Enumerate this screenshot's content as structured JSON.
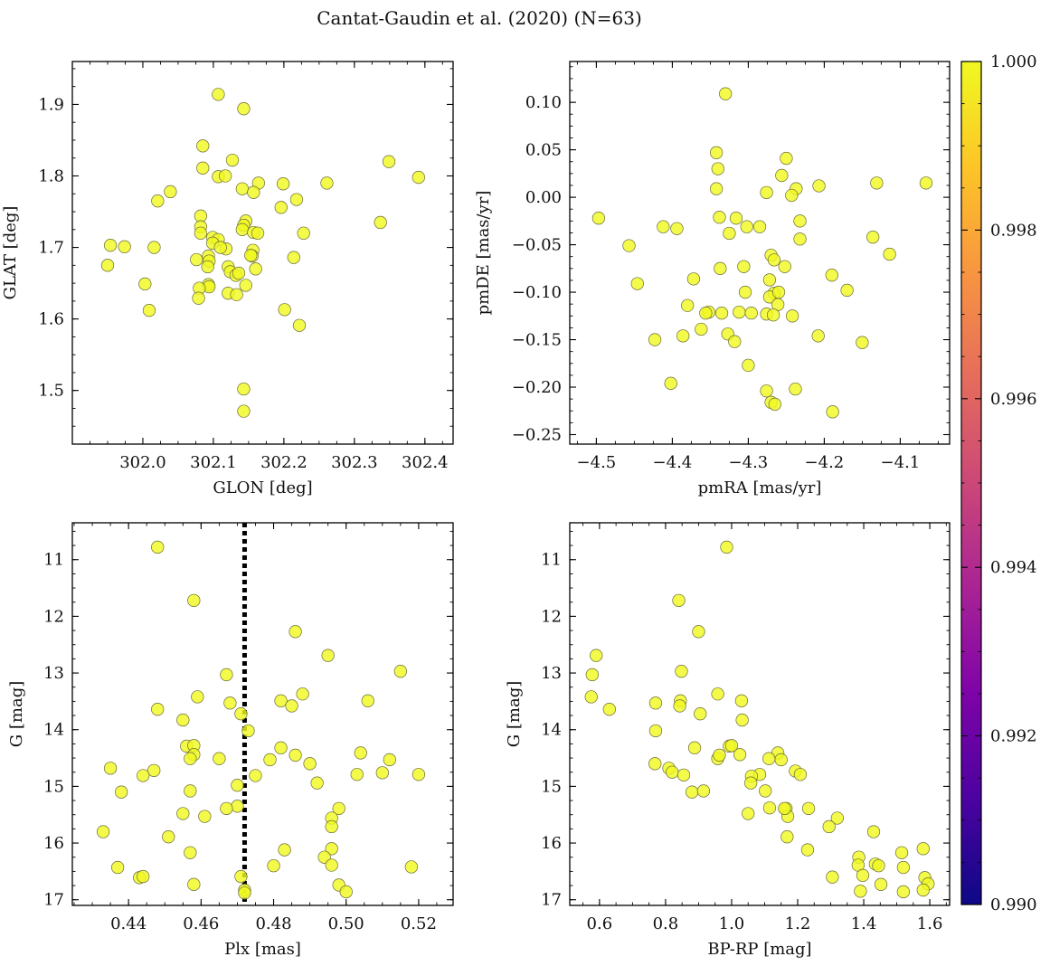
{
  "figure": {
    "title": "Cantat-Gaudin et al. (2020) (N=63)"
  },
  "colorbar": {
    "colormap": "plasma",
    "range": [
      0.99,
      1.0
    ],
    "ticks": [
      0.99,
      0.992,
      0.994,
      0.996,
      0.998,
      1.0
    ],
    "tick_labels": [
      "0.990",
      "0.992",
      "0.994",
      "0.996",
      "0.998",
      "1.000"
    ]
  },
  "chart_data": [
    {
      "type": "scatter",
      "panel": "top-left",
      "xlabel": "GLON [deg]",
      "ylabel": "GLAT [deg]",
      "xlim": [
        301.9,
        302.44
      ],
      "ylim": [
        1.425,
        1.96
      ],
      "xticks": [
        302.0,
        302.1,
        302.2,
        302.3,
        302.4
      ],
      "xtick_labels": [
        "302.0",
        "302.1",
        "302.2",
        "302.3",
        "302.4"
      ],
      "yticks": [
        1.5,
        1.6,
        1.7,
        1.8,
        1.9
      ],
      "ytick_labels": [
        "1.5",
        "1.6",
        "1.7",
        "1.8",
        "1.9"
      ],
      "point_color": "#f0f921",
      "membership_probability": 1.0,
      "points": [
        [
          302.107,
          1.914
        ],
        [
          302.143,
          1.894
        ],
        [
          302.349,
          1.82
        ],
        [
          302.391,
          1.798
        ],
        [
          302.085,
          1.842
        ],
        [
          302.127,
          1.822
        ],
        [
          302.085,
          1.811
        ],
        [
          302.107,
          1.799
        ],
        [
          302.117,
          1.8
        ],
        [
          302.039,
          1.778
        ],
        [
          302.021,
          1.765
        ],
        [
          302.141,
          1.782
        ],
        [
          302.164,
          1.79
        ],
        [
          302.157,
          1.777
        ],
        [
          302.199,
          1.789
        ],
        [
          302.261,
          1.79
        ],
        [
          302.218,
          1.767
        ],
        [
          302.196,
          1.756
        ],
        [
          302.082,
          1.744
        ],
        [
          302.146,
          1.737
        ],
        [
          302.143,
          1.731
        ],
        [
          302.082,
          1.729
        ],
        [
          302.141,
          1.725
        ],
        [
          302.099,
          1.714
        ],
        [
          302.157,
          1.721
        ],
        [
          302.163,
          1.72
        ],
        [
          302.082,
          1.72
        ],
        [
          302.107,
          1.711
        ],
        [
          302.099,
          1.706
        ],
        [
          302.228,
          1.72
        ],
        [
          302.337,
          1.735
        ],
        [
          301.954,
          1.703
        ],
        [
          301.974,
          1.701
        ],
        [
          302.016,
          1.7
        ],
        [
          302.118,
          1.698
        ],
        [
          302.156,
          1.696
        ],
        [
          302.093,
          1.688
        ],
        [
          302.155,
          1.688
        ],
        [
          301.95,
          1.675
        ],
        [
          302.076,
          1.683
        ],
        [
          302.094,
          1.681
        ],
        [
          302.214,
          1.686
        ],
        [
          302.092,
          1.673
        ],
        [
          302.121,
          1.673
        ],
        [
          302.124,
          1.666
        ],
        [
          302.16,
          1.67
        ],
        [
          302.132,
          1.661
        ],
        [
          302.136,
          1.664
        ],
        [
          302.093,
          1.648
        ],
        [
          302.094,
          1.645
        ],
        [
          302.146,
          1.647
        ],
        [
          302.08,
          1.643
        ],
        [
          302.003,
          1.649
        ],
        [
          302.121,
          1.636
        ],
        [
          302.133,
          1.634
        ],
        [
          302.079,
          1.629
        ],
        [
          302.009,
          1.612
        ],
        [
          302.201,
          1.613
        ],
        [
          302.222,
          1.591
        ],
        [
          302.143,
          1.502
        ],
        [
          302.143,
          1.471
        ],
        [
          302.11,
          1.7
        ],
        [
          302.153,
          1.689
        ]
      ]
    },
    {
      "type": "scatter",
      "panel": "top-right",
      "xlabel": "pmRA [mas/yr]",
      "ylabel": "pmDE [mas/yr]",
      "xlim": [
        -4.535,
        -4.035
      ],
      "ylim": [
        -0.26,
        0.143
      ],
      "xticks": [
        -4.5,
        -4.4,
        -4.3,
        -4.2,
        -4.1
      ],
      "xtick_labels": [
        "−4.5",
        "−4.4",
        "−4.3",
        "−4.2",
        "−4.1"
      ],
      "yticks": [
        -0.25,
        -0.2,
        -0.15,
        -0.1,
        -0.05,
        0.0,
        0.05,
        0.1
      ],
      "ytick_labels": [
        "−0.25",
        "−0.20",
        "−0.15",
        "−0.10",
        "−0.05",
        "0.00",
        "0.05",
        "0.10"
      ],
      "point_color": "#f0f921",
      "membership_probability": 1.0,
      "points": [
        [
          -4.33,
          0.109
        ],
        [
          -4.342,
          0.047
        ],
        [
          -4.34,
          0.03
        ],
        [
          -4.25,
          0.041
        ],
        [
          -4.342,
          0.009
        ],
        [
          -4.256,
          0.023
        ],
        [
          -4.207,
          0.012
        ],
        [
          -4.131,
          0.015
        ],
        [
          -4.066,
          0.015
        ],
        [
          -4.276,
          0.005
        ],
        [
          -4.237,
          0.009
        ],
        [
          -4.243,
          0.002
        ],
        [
          -4.497,
          -0.022
        ],
        [
          -4.338,
          -0.021
        ],
        [
          -4.316,
          -0.022
        ],
        [
          -4.232,
          -0.025
        ],
        [
          -4.412,
          -0.031
        ],
        [
          -4.394,
          -0.033
        ],
        [
          -4.302,
          -0.031
        ],
        [
          -4.285,
          -0.031
        ],
        [
          -4.325,
          -0.038
        ],
        [
          -4.232,
          -0.044
        ],
        [
          -4.136,
          -0.042
        ],
        [
          -4.457,
          -0.051
        ],
        [
          -4.114,
          -0.06
        ],
        [
          -4.27,
          -0.061
        ],
        [
          -4.266,
          -0.066
        ],
        [
          -4.306,
          -0.073
        ],
        [
          -4.337,
          -0.075
        ],
        [
          -4.252,
          -0.073
        ],
        [
          -4.19,
          -0.082
        ],
        [
          -4.372,
          -0.086
        ],
        [
          -4.272,
          -0.087
        ],
        [
          -4.446,
          -0.091
        ],
        [
          -4.304,
          -0.1
        ],
        [
          -4.266,
          -0.101
        ],
        [
          -4.17,
          -0.098
        ],
        [
          -4.272,
          -0.105
        ],
        [
          -4.261,
          -0.113
        ],
        [
          -4.38,
          -0.114
        ],
        [
          -4.352,
          -0.121
        ],
        [
          -4.356,
          -0.122
        ],
        [
          -4.312,
          -0.121
        ],
        [
          -4.296,
          -0.122
        ],
        [
          -4.276,
          -0.123
        ],
        [
          -4.267,
          -0.124
        ],
        [
          -4.242,
          -0.125
        ],
        [
          -4.362,
          -0.139
        ],
        [
          -4.327,
          -0.144
        ],
        [
          -4.318,
          -0.152
        ],
        [
          -4.386,
          -0.146
        ],
        [
          -4.423,
          -0.15
        ],
        [
          -4.208,
          -0.146
        ],
        [
          -4.15,
          -0.153
        ],
        [
          -4.3,
          -0.177
        ],
        [
          -4.402,
          -0.196
        ],
        [
          -4.276,
          -0.204
        ],
        [
          -4.238,
          -0.202
        ],
        [
          -4.27,
          -0.216
        ],
        [
          -4.265,
          -0.218
        ],
        [
          -4.189,
          -0.226
        ],
        [
          -4.335,
          -0.122
        ],
        [
          -4.26,
          -0.1
        ]
      ]
    },
    {
      "type": "scatter",
      "panel": "bottom-left",
      "xlabel": "Plx [mas]",
      "ylabel": "G [mag]",
      "xlim": [
        0.4245,
        0.5295
      ],
      "ylim": [
        17.1,
        10.35
      ],
      "y_inverted": true,
      "xticks": [
        0.44,
        0.46,
        0.48,
        0.5,
        0.52
      ],
      "xtick_labels": [
        "0.44",
        "0.46",
        "0.48",
        "0.50",
        "0.52"
      ],
      "yticks": [
        11,
        12,
        13,
        14,
        15,
        16,
        17
      ],
      "ytick_labels": [
        "11",
        "12",
        "13",
        "14",
        "15",
        "16",
        "17"
      ],
      "vline": {
        "x": 0.472,
        "style": "dotted",
        "color": "#000000"
      },
      "point_color": "#f0f921",
      "membership_probability": 1.0,
      "points": [
        [
          0.448,
          10.78
        ],
        [
          0.458,
          11.72
        ],
        [
          0.486,
          12.27
        ],
        [
          0.495,
          12.69
        ],
        [
          0.515,
          12.97
        ],
        [
          0.467,
          13.03
        ],
        [
          0.488,
          13.37
        ],
        [
          0.459,
          13.42
        ],
        [
          0.482,
          13.49
        ],
        [
          0.506,
          13.49
        ],
        [
          0.468,
          13.53
        ],
        [
          0.485,
          13.58
        ],
        [
          0.448,
          13.64
        ],
        [
          0.471,
          13.72
        ],
        [
          0.455,
          13.83
        ],
        [
          0.473,
          14.02
        ],
        [
          0.456,
          14.29
        ],
        [
          0.458,
          14.28
        ],
        [
          0.482,
          14.32
        ],
        [
          0.458,
          14.44
        ],
        [
          0.457,
          14.51
        ],
        [
          0.486,
          14.45
        ],
        [
          0.504,
          14.41
        ],
        [
          0.465,
          14.51
        ],
        [
          0.479,
          14.53
        ],
        [
          0.49,
          14.6
        ],
        [
          0.512,
          14.53
        ],
        [
          0.435,
          14.68
        ],
        [
          0.447,
          14.72
        ],
        [
          0.444,
          14.81
        ],
        [
          0.475,
          14.81
        ],
        [
          0.503,
          14.79
        ],
        [
          0.51,
          14.76
        ],
        [
          0.52,
          14.79
        ],
        [
          0.47,
          14.98
        ],
        [
          0.492,
          14.94
        ],
        [
          0.438,
          15.1
        ],
        [
          0.457,
          15.08
        ],
        [
          0.47,
          15.35
        ],
        [
          0.467,
          15.39
        ],
        [
          0.498,
          15.39
        ],
        [
          0.455,
          15.48
        ],
        [
          0.461,
          15.53
        ],
        [
          0.496,
          15.56
        ],
        [
          0.496,
          15.71
        ],
        [
          0.433,
          15.8
        ],
        [
          0.451,
          15.89
        ],
        [
          0.483,
          16.12
        ],
        [
          0.457,
          16.17
        ],
        [
          0.496,
          16.1
        ],
        [
          0.494,
          16.25
        ],
        [
          0.496,
          16.39
        ],
        [
          0.437,
          16.43
        ],
        [
          0.48,
          16.4
        ],
        [
          0.518,
          16.42
        ],
        [
          0.443,
          16.61
        ],
        [
          0.444,
          16.59
        ],
        [
          0.471,
          16.59
        ],
        [
          0.458,
          16.73
        ],
        [
          0.498,
          16.74
        ],
        [
          0.472,
          16.83
        ],
        [
          0.5,
          16.86
        ],
        [
          0.472,
          16.88
        ]
      ]
    },
    {
      "type": "scatter",
      "panel": "bottom-right",
      "xlabel": "BP-RP [mag]",
      "ylabel": "G [mag]",
      "xlim": [
        0.51,
        1.66
      ],
      "ylim": [
        17.1,
        10.35
      ],
      "y_inverted": true,
      "xticks": [
        0.6,
        0.8,
        1.0,
        1.2,
        1.4,
        1.6
      ],
      "xtick_labels": [
        "0.6",
        "0.8",
        "1.0",
        "1.2",
        "1.4",
        "1.6"
      ],
      "yticks": [
        11,
        12,
        13,
        14,
        15,
        16,
        17
      ],
      "ytick_labels": [
        "11",
        "12",
        "13",
        "14",
        "15",
        "16",
        "17"
      ],
      "point_color": "#f0f921",
      "membership_probability": 1.0,
      "points": [
        [
          0.985,
          10.78
        ],
        [
          0.84,
          11.72
        ],
        [
          0.9,
          12.27
        ],
        [
          0.59,
          12.69
        ],
        [
          0.848,
          12.97
        ],
        [
          0.578,
          13.03
        ],
        [
          0.958,
          13.37
        ],
        [
          0.575,
          13.42
        ],
        [
          0.845,
          13.49
        ],
        [
          1.03,
          13.49
        ],
        [
          0.77,
          13.53
        ],
        [
          0.843,
          13.58
        ],
        [
          0.63,
          13.64
        ],
        [
          0.905,
          13.72
        ],
        [
          1.032,
          13.83
        ],
        [
          0.77,
          14.02
        ],
        [
          0.993,
          14.29
        ],
        [
          1.0,
          14.28
        ],
        [
          0.888,
          14.32
        ],
        [
          1.025,
          14.44
        ],
        [
          0.958,
          14.51
        ],
        [
          0.963,
          14.45
        ],
        [
          1.14,
          14.41
        ],
        [
          1.113,
          14.51
        ],
        [
          1.15,
          14.53
        ],
        [
          0.768,
          14.6
        ],
        [
          0.81,
          14.68
        ],
        [
          0.82,
          14.75
        ],
        [
          0.855,
          14.8
        ],
        [
          1.085,
          14.79
        ],
        [
          1.06,
          14.82
        ],
        [
          1.193,
          14.73
        ],
        [
          1.208,
          14.79
        ],
        [
          1.058,
          14.94
        ],
        [
          1.102,
          15.08
        ],
        [
          0.88,
          15.1
        ],
        [
          0.915,
          15.08
        ],
        [
          1.165,
          15.39
        ],
        [
          1.233,
          15.39
        ],
        [
          1.115,
          15.38
        ],
        [
          1.05,
          15.48
        ],
        [
          1.17,
          15.53
        ],
        [
          1.32,
          15.56
        ],
        [
          1.295,
          15.71
        ],
        [
          1.168,
          15.89
        ],
        [
          1.43,
          15.8
        ],
        [
          1.23,
          16.12
        ],
        [
          1.515,
          16.17
        ],
        [
          1.58,
          16.1
        ],
        [
          1.385,
          16.25
        ],
        [
          1.383,
          16.39
        ],
        [
          1.435,
          16.37
        ],
        [
          1.445,
          16.4
        ],
        [
          1.52,
          16.43
        ],
        [
          1.305,
          16.6
        ],
        [
          1.397,
          16.57
        ],
        [
          1.585,
          16.61
        ],
        [
          1.595,
          16.72
        ],
        [
          1.452,
          16.73
        ],
        [
          1.39,
          16.85
        ],
        [
          1.52,
          16.86
        ],
        [
          1.58,
          16.83
        ],
        [
          1.16,
          15.39
        ]
      ]
    }
  ]
}
